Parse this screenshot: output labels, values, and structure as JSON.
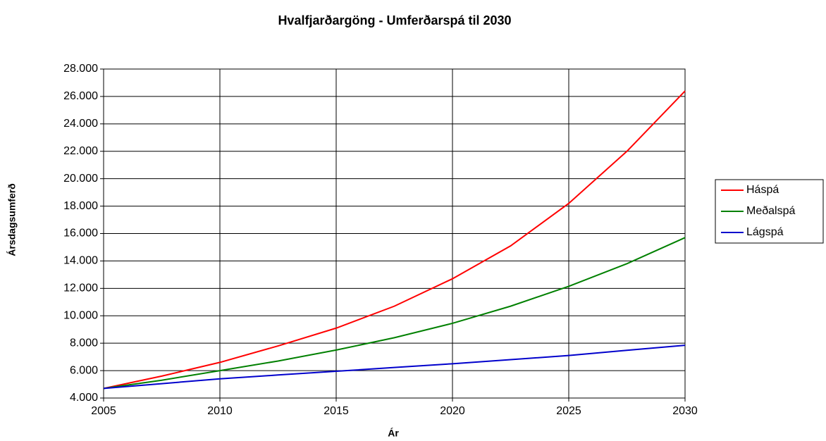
{
  "chart_data": {
    "type": "line",
    "title": "Hvalfjarðargöng - Umferðarspá til 2030",
    "xlabel": "Ár",
    "ylabel": "Ársdagsumferð",
    "x": [
      2005,
      2007.5,
      2010,
      2012.5,
      2015,
      2017.5,
      2020,
      2022.5,
      2025,
      2027.5,
      2030
    ],
    "series": [
      {
        "name": "Háspá",
        "color": "#ff0000",
        "values": [
          4700,
          5600,
          6600,
          7800,
          9100,
          10700,
          12700,
          15100,
          18200,
          22000,
          26400
        ]
      },
      {
        "name": "Meðalspá",
        "color": "#008000",
        "values": [
          4700,
          5300,
          6000,
          6700,
          7500,
          8400,
          9450,
          10700,
          12150,
          13800,
          15700
        ]
      },
      {
        "name": "Lágspá",
        "color": "#0000cc",
        "values": [
          4700,
          5050,
          5400,
          5680,
          5950,
          6230,
          6500,
          6800,
          7100,
          7480,
          7850
        ]
      }
    ],
    "xlim": [
      2005,
      2030
    ],
    "xticks": [
      2005,
      2010,
      2015,
      2020,
      2025,
      2030
    ],
    "ylim": [
      4000,
      28000
    ],
    "yticks": [
      {
        "value": 4000,
        "label": "4.000"
      },
      {
        "value": 6000,
        "label": "6.000"
      },
      {
        "value": 8000,
        "label": "8.000"
      },
      {
        "value": 10000,
        "label": "10.000"
      },
      {
        "value": 12000,
        "label": "12.000"
      },
      {
        "value": 14000,
        "label": "14.000"
      },
      {
        "value": 16000,
        "label": "16.000"
      },
      {
        "value": 18000,
        "label": "18.000"
      },
      {
        "value": 20000,
        "label": "20.000"
      },
      {
        "value": 22000,
        "label": "22.000"
      },
      {
        "value": 24000,
        "label": "24.000"
      },
      {
        "value": 26000,
        "label": "26.000"
      },
      {
        "value": 28000,
        "label": "28.000"
      }
    ],
    "grid": true,
    "legend": "right"
  }
}
